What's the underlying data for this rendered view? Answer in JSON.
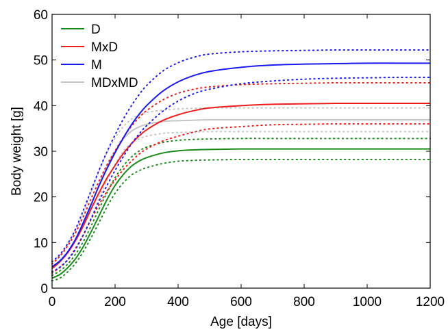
{
  "chart_data": {
    "type": "line",
    "title": "",
    "xlabel": "Age [days]",
    "ylabel": "Body weight [g]",
    "xlim": [
      0,
      1200
    ],
    "ylim": [
      0,
      60
    ],
    "x_ticks": [
      0,
      200,
      400,
      600,
      800,
      1000,
      1200
    ],
    "y_ticks": [
      0,
      10,
      20,
      30,
      40,
      50,
      60
    ],
    "grid": false,
    "legend_position": "top-left",
    "x": [
      0,
      25,
      50,
      75,
      100,
      125,
      150,
      175,
      200,
      225,
      250,
      275,
      300,
      350,
      400,
      450,
      500,
      600,
      700,
      800,
      900,
      1000,
      1100,
      1200
    ],
    "series": [
      {
        "name": "D",
        "color": "#1a8a1a",
        "values": [
          2.2,
          3.0,
          4.5,
          6.5,
          9.2,
          12.5,
          16.0,
          19.5,
          22.5,
          24.8,
          26.6,
          27.8,
          28.6,
          29.6,
          30.1,
          30.3,
          30.4,
          30.5,
          30.5,
          30.5,
          30.5,
          30.5,
          30.5,
          30.5
        ],
        "upper": [
          2.8,
          3.8,
          5.3,
          7.5,
          10.3,
          13.8,
          17.5,
          21.0,
          24.2,
          26.7,
          28.6,
          30.0,
          30.9,
          31.9,
          32.4,
          32.6,
          32.7,
          32.8,
          32.8,
          32.8,
          32.8,
          32.8,
          32.8,
          32.8
        ],
        "lower": [
          1.6,
          2.2,
          3.6,
          5.5,
          8.1,
          11.2,
          14.5,
          17.9,
          20.8,
          23.0,
          24.7,
          25.7,
          26.4,
          27.3,
          27.8,
          28.0,
          28.1,
          28.2,
          28.2,
          28.2,
          28.2,
          28.2,
          28.2,
          28.2
        ]
      },
      {
        "name": "MxD",
        "color": "#ee1c1c",
        "values": [
          4.3,
          5.8,
          7.8,
          10.5,
          13.8,
          17.5,
          21.0,
          24.2,
          26.9,
          29.4,
          31.5,
          33.3,
          34.7,
          36.7,
          38.0,
          38.9,
          39.5,
          40.0,
          40.3,
          40.4,
          40.5,
          40.5,
          40.5,
          40.5
        ],
        "upper": [
          5.3,
          7.0,
          9.3,
          12.2,
          15.8,
          19.8,
          23.6,
          27.1,
          30.1,
          32.9,
          35.3,
          37.3,
          38.9,
          41.2,
          42.7,
          43.6,
          44.1,
          44.6,
          44.8,
          44.9,
          45.0,
          45.0,
          45.0,
          45.0
        ],
        "lower": [
          3.3,
          4.6,
          6.3,
          8.8,
          11.8,
          15.2,
          18.4,
          21.3,
          23.7,
          25.9,
          27.7,
          29.3,
          30.5,
          32.2,
          33.3,
          34.2,
          34.9,
          35.4,
          35.8,
          35.9,
          36.0,
          36.0,
          36.0,
          36.0
        ]
      },
      {
        "name": "M",
        "color": "#1a1aee",
        "values": [
          4.7,
          6.0,
          8.0,
          10.8,
          14.5,
          18.5,
          22.6,
          26.3,
          29.7,
          32.8,
          35.6,
          38.0,
          40.0,
          43.1,
          45.2,
          46.6,
          47.5,
          48.4,
          48.9,
          49.1,
          49.2,
          49.3,
          49.3,
          49.3
        ],
        "upper": [
          5.8,
          7.4,
          9.8,
          13.0,
          17.2,
          21.6,
          26.0,
          30.0,
          33.6,
          36.9,
          39.8,
          42.3,
          44.4,
          47.5,
          49.4,
          50.6,
          51.3,
          51.8,
          52.0,
          52.1,
          52.2,
          52.2,
          52.2,
          52.2
        ],
        "lower": [
          3.6,
          4.6,
          6.2,
          8.6,
          11.8,
          15.4,
          19.2,
          22.6,
          25.8,
          28.7,
          31.4,
          33.7,
          35.6,
          38.7,
          41.0,
          42.6,
          43.6,
          44.8,
          45.4,
          45.8,
          46.0,
          46.1,
          46.2,
          46.2
        ]
      },
      {
        "name": "MDxMD",
        "color": "#c4c4c4",
        "values": [
          4.4,
          5.8,
          7.9,
          10.6,
          14.1,
          18.3,
          22.8,
          26.8,
          30.0,
          32.6,
          34.3,
          35.3,
          35.9,
          36.5,
          36.7,
          36.8,
          36.9,
          36.9,
          36.9,
          36.9,
          36.9,
          36.9,
          36.9,
          36.9
        ],
        "upper": [
          5.4,
          7.2,
          9.6,
          12.7,
          16.6,
          21.2,
          25.8,
          29.8,
          32.9,
          35.3,
          36.9,
          37.9,
          38.5,
          39.0,
          39.3,
          39.4,
          39.5,
          39.5,
          39.5,
          39.5,
          39.5,
          39.5,
          39.5,
          39.5
        ],
        "lower": [
          3.4,
          4.4,
          6.2,
          8.5,
          11.6,
          15.4,
          19.8,
          23.8,
          27.1,
          29.9,
          31.7,
          32.7,
          33.3,
          33.9,
          34.1,
          34.2,
          34.3,
          34.3,
          34.3,
          34.3,
          34.3,
          34.3,
          34.3,
          34.3
        ]
      }
    ]
  }
}
